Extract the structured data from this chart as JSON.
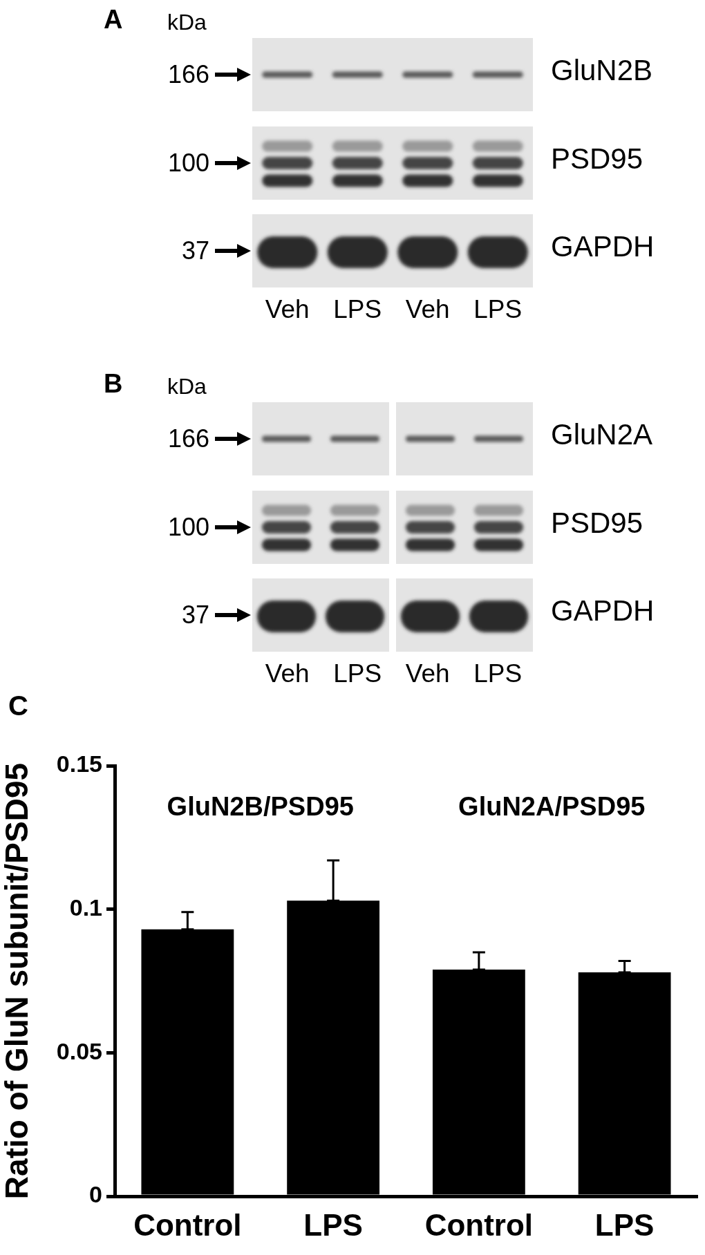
{
  "chart_data": [
    {
      "type": "other",
      "title": "A",
      "ylabel": "kDa",
      "categories": [
        "Veh",
        "LPS",
        "Veh",
        "LPS"
      ],
      "y_categories": [
        "166",
        "100",
        "37"
      ],
      "y2_categories": [
        "GluN2B",
        "PSD95",
        "GAPDH"
      ]
    },
    {
      "type": "other",
      "title": "B",
      "ylabel": "kDa",
      "categories": [
        "Veh",
        "LPS",
        "Veh",
        "LPS"
      ],
      "y_categories": [
        "166",
        "100",
        "37"
      ],
      "y2_categories": [
        "GluN2A",
        "PSD95",
        "GAPDH"
      ]
    },
    {
      "type": "bar",
      "title": "C",
      "ylabel": "Ratio of GluN subunit/PSD95",
      "categories": [
        "Control",
        "LPS",
        "Control",
        "LPS"
      ],
      "values": [
        0.093,
        0.103,
        0.079,
        0.078
      ],
      "errors": [
        [
          0.093,
          0.099
        ],
        [
          0.103,
          0.117
        ],
        [
          0.079,
          0.085
        ],
        [
          0.078,
          0.082
        ]
      ],
      "color": "#000000",
      "ylim": [
        0,
        0.15
      ],
      "yticks": [
        0,
        0.05,
        0.1,
        0.15
      ],
      "annotations": [
        "GluN2B/PSD95",
        "GluN2A/PSD95"
      ]
    }
  ]
}
